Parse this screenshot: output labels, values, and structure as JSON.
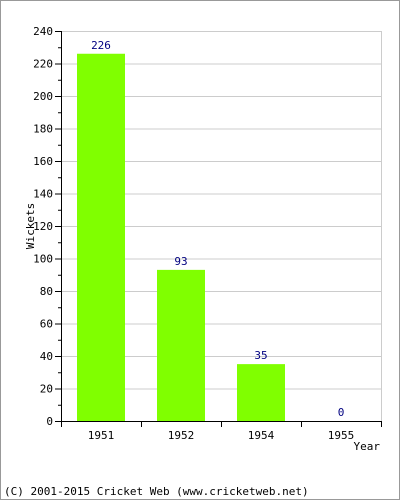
{
  "chart_data": {
    "type": "bar",
    "categories": [
      "1951",
      "1952",
      "1954",
      "1955"
    ],
    "values": [
      226,
      93,
      35,
      0
    ],
    "title": "",
    "xlabel": "Year",
    "ylabel": "Wickets",
    "ylim": [
      0,
      240
    ],
    "ytick_step": 20,
    "grid": true,
    "data_labels": true,
    "bar_color": "#80ff00",
    "label_color": "#000080",
    "grid_color": "#cccccc"
  },
  "footer": {
    "copyright": "(C) 2001-2015 Cricket Web (www.cricketweb.net)"
  }
}
